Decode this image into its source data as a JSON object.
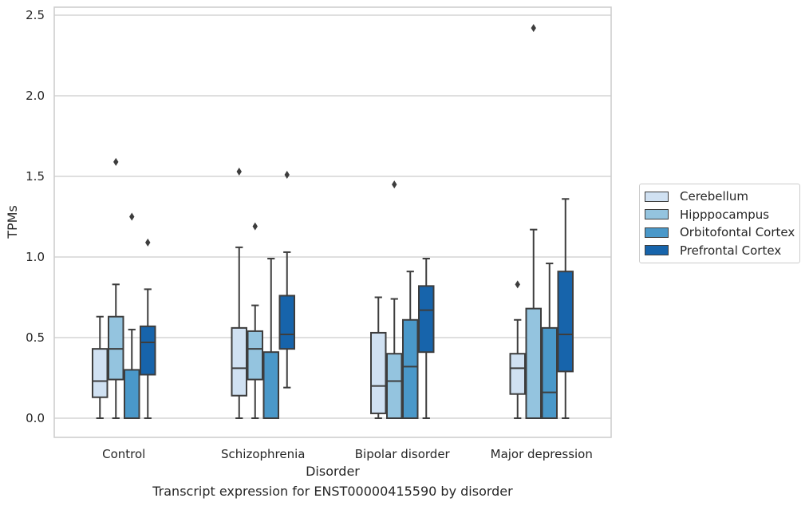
{
  "caption": "Transcript expression for ENST00000415590 by disorder",
  "chart_data": {
    "type": "box",
    "xlabel": "Disorder",
    "ylabel": "TPMs",
    "ylim": [
      -0.12,
      2.55
    ],
    "yticks": [
      0.0,
      0.5,
      1.0,
      1.5,
      2.0,
      2.5
    ],
    "ytick_labels": [
      "0.0",
      "0.5",
      "1.0",
      "1.5",
      "2.0",
      "2.5"
    ],
    "grid": true,
    "legend_position": "center-right, outside plot",
    "categories": [
      "Control",
      "Schizophrenia",
      "Bipolar disorder",
      "Major depression"
    ],
    "series": [
      {
        "name": "Cerebellum",
        "color": "#d0e1f2",
        "boxes": [
          {
            "whislo": 0.0,
            "q1": 0.13,
            "med": 0.23,
            "q3": 0.43,
            "whishi": 0.63,
            "fliers": []
          },
          {
            "whislo": 0.0,
            "q1": 0.14,
            "med": 0.31,
            "q3": 0.56,
            "whishi": 1.06,
            "fliers": [
              1.53
            ]
          },
          {
            "whislo": 0.0,
            "q1": 0.03,
            "med": 0.2,
            "q3": 0.53,
            "whishi": 0.75,
            "fliers": []
          },
          {
            "whislo": 0.0,
            "q1": 0.15,
            "med": 0.31,
            "q3": 0.4,
            "whishi": 0.61,
            "fliers": [
              0.83
            ]
          }
        ]
      },
      {
        "name": "Hipppocampus",
        "color": "#94c4df",
        "boxes": [
          {
            "whislo": 0.0,
            "q1": 0.24,
            "med": 0.43,
            "q3": 0.63,
            "whishi": 0.83,
            "fliers": [
              1.59
            ]
          },
          {
            "whislo": 0.0,
            "q1": 0.24,
            "med": 0.43,
            "q3": 0.54,
            "whishi": 0.7,
            "fliers": [
              1.19
            ]
          },
          {
            "whislo": 0.0,
            "q1": 0.0,
            "med": 0.23,
            "q3": 0.4,
            "whishi": 0.74,
            "fliers": [
              1.45
            ]
          },
          {
            "whislo": 0.0,
            "q1": 0.0,
            "med": 0.0,
            "q3": 0.68,
            "whishi": 1.17,
            "fliers": [
              2.42
            ]
          }
        ]
      },
      {
        "name": "Orbitofontal Cortex",
        "color": "#4a98c9",
        "boxes": [
          {
            "whislo": 0.0,
            "q1": 0.0,
            "med": 0.0,
            "q3": 0.3,
            "whishi": 0.55,
            "fliers": [
              1.25
            ]
          },
          {
            "whislo": 0.0,
            "q1": 0.0,
            "med": 0.0,
            "q3": 0.41,
            "whishi": 0.99,
            "fliers": []
          },
          {
            "whislo": 0.0,
            "q1": 0.0,
            "med": 0.32,
            "q3": 0.61,
            "whishi": 0.91,
            "fliers": []
          },
          {
            "whislo": 0.0,
            "q1": 0.0,
            "med": 0.16,
            "q3": 0.56,
            "whishi": 0.96,
            "fliers": []
          }
        ]
      },
      {
        "name": "Prefrontal Cortex",
        "color": "#1764ab",
        "boxes": [
          {
            "whislo": 0.0,
            "q1": 0.27,
            "med": 0.47,
            "q3": 0.57,
            "whishi": 0.8,
            "fliers": [
              1.09
            ]
          },
          {
            "whislo": 0.19,
            "q1": 0.43,
            "med": 0.52,
            "q3": 0.76,
            "whishi": 1.03,
            "fliers": [
              1.51
            ]
          },
          {
            "whislo": 0.0,
            "q1": 0.41,
            "med": 0.67,
            "q3": 0.82,
            "whishi": 0.99,
            "fliers": []
          },
          {
            "whislo": 0.0,
            "q1": 0.29,
            "med": 0.52,
            "q3": 0.91,
            "whishi": 1.36,
            "fliers": []
          }
        ]
      }
    ]
  }
}
